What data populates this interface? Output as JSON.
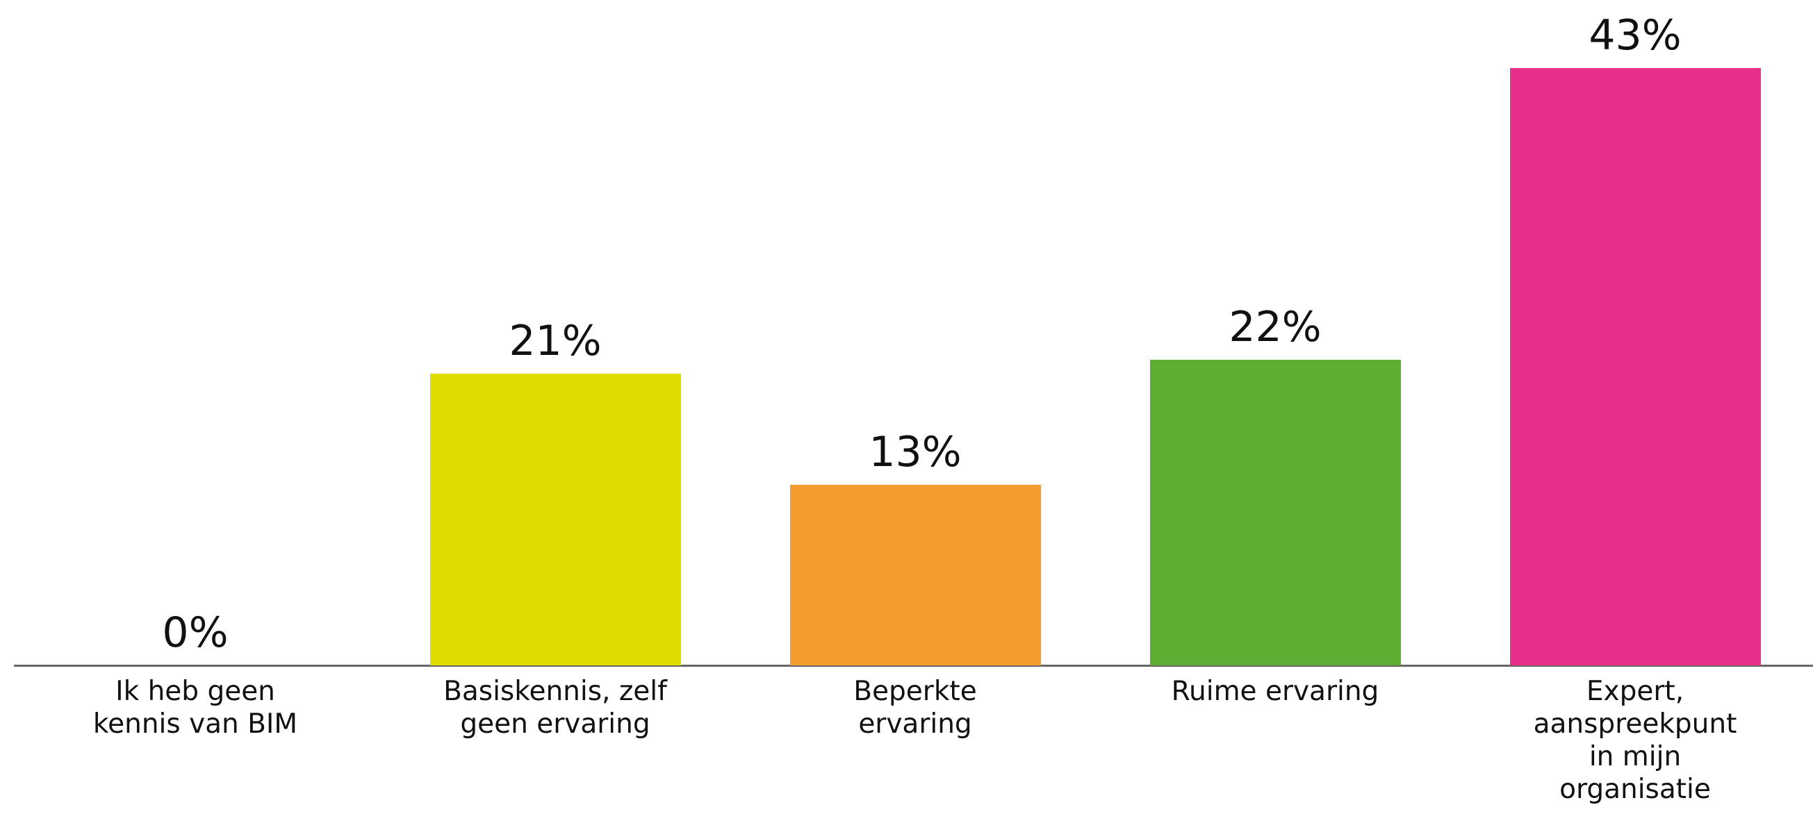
{
  "chart_data": {
    "type": "bar",
    "categories": [
      "Ik heb geen\nkennis van BIM",
      "Basiskennis, zelf\ngeen ervaring",
      "Beperkte\nervaring",
      "Ruime ervaring",
      "Expert,\naanspreekpunt\nin mijn\norganisatie"
    ],
    "values": [
      0,
      21,
      13,
      22,
      43
    ],
    "value_labels": [
      "0%",
      "21%",
      "13%",
      "22%",
      "43%"
    ],
    "colors": [
      null,
      "#e0dc00",
      "#f59c2e",
      "#5dae32",
      "#e8308a"
    ]
  }
}
